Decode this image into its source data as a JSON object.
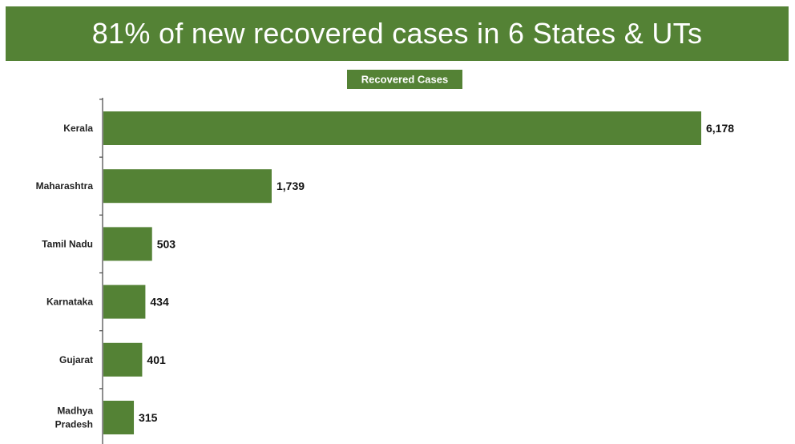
{
  "page": {
    "title": "81% of new recovered cases in 6 States & UTs",
    "accent_color": "#548235"
  },
  "chart_data": {
    "type": "bar",
    "orientation": "horizontal",
    "title": "Recovered Cases",
    "categories": [
      "Kerala",
      "Maharashtra",
      "Tamil Nadu",
      "Karnataka",
      "Gujarat",
      "Madhya Pradesh"
    ],
    "values": [
      6178,
      1739,
      503,
      434,
      401,
      315
    ],
    "value_labels": [
      "6,178",
      "1,739",
      "503",
      "434",
      "401",
      "315"
    ],
    "xlim": [
      0,
      6178
    ],
    "grid": false,
    "legend": "none",
    "bar_color": "#548235"
  }
}
